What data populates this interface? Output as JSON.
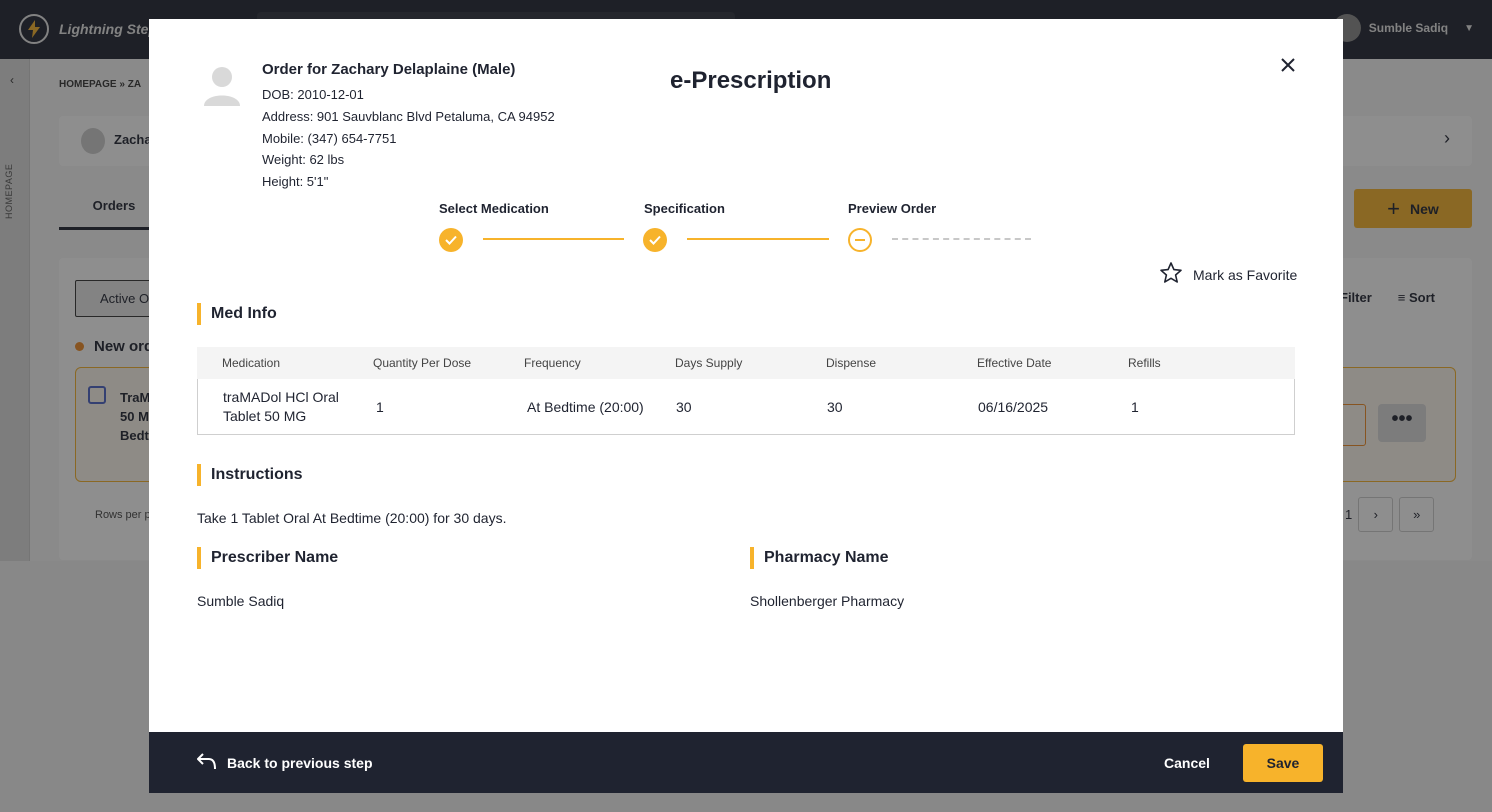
{
  "app": {
    "logo_text": "Lightning Step",
    "user_name": "Sumble Sadiq"
  },
  "background": {
    "breadcrumb": "HOMEPAGE  »  ZA",
    "side_label": "HOMEPAGE",
    "patient_short": "Zacha",
    "tab_orders": "Orders",
    "new_button": "New",
    "active_tab": "Active O",
    "filter": "Filter",
    "sort": "Sort",
    "new_orders": "New ord",
    "order_card_lines": [
      "TraM",
      "50 M",
      "Bedt"
    ],
    "rows_per_page": "Rows per p",
    "page_of": "1",
    "more": "•••"
  },
  "patient": {
    "name_line": "Order for Zachary Delaplaine (Male)",
    "dob": "DOB: 2010-12-01",
    "address": "Address: 901 Sauvblanc Blvd Petaluma, CA 94952",
    "mobile": "Mobile: (347) 654-7751",
    "weight": "Weight: 62 lbs",
    "height": "Height: 5'1\""
  },
  "modal": {
    "title": "e-Prescription",
    "mark_favorite": "Mark as Favorite"
  },
  "steps": [
    {
      "label": "Select Medication",
      "state": "done"
    },
    {
      "label": "Specification",
      "state": "done"
    },
    {
      "label": "Preview Order",
      "state": "current"
    }
  ],
  "med_info": {
    "heading": "Med Info",
    "columns": [
      "Medication",
      "Quantity Per Dose",
      "Frequency",
      "Days Supply",
      "Dispense",
      "Effective Date",
      "Refills"
    ],
    "row": {
      "medication_line1": "traMADol HCl Oral",
      "medication_line2": "Tablet 50 MG",
      "quantity_per_dose": "1",
      "frequency": "At Bedtime (20:00)",
      "days_supply": "30",
      "dispense": "30",
      "effective_date": "06/16/2025",
      "refills": "1"
    }
  },
  "instructions": {
    "heading": "Instructions",
    "text": "Take 1 Tablet Oral At Bedtime (20:00) for 30 days."
  },
  "prescriber": {
    "heading": "Prescriber Name",
    "value": "Sumble Sadiq"
  },
  "pharmacy": {
    "heading": "Pharmacy Name",
    "value": "Shollenberger Pharmacy"
  },
  "footer": {
    "back_label": "Back to previous step",
    "cancel_label": "Cancel",
    "save_label": "Save"
  },
  "colors": {
    "accent": "#f7b32b",
    "dark": "#1f2330"
  },
  "icons": {
    "close": "close-icon",
    "favorite": "star-outline-icon",
    "back": "undo-arrow-icon",
    "step_done": "check-icon",
    "step_current": "minus-circle-icon"
  }
}
